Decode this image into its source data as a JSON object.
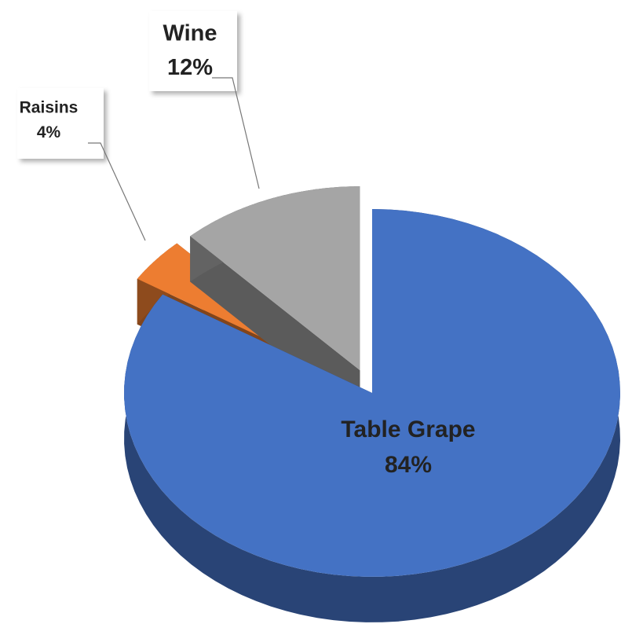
{
  "chart_data": {
    "type": "pie",
    "categories": [
      "Table Grape",
      "Raisins",
      "Wine"
    ],
    "values": [
      84,
      4,
      12
    ],
    "value_labels": [
      "84%",
      "4%",
      "12%"
    ],
    "colors": [
      "#4472c4",
      "#ed7d31",
      "#a5a5a5"
    ]
  }
}
